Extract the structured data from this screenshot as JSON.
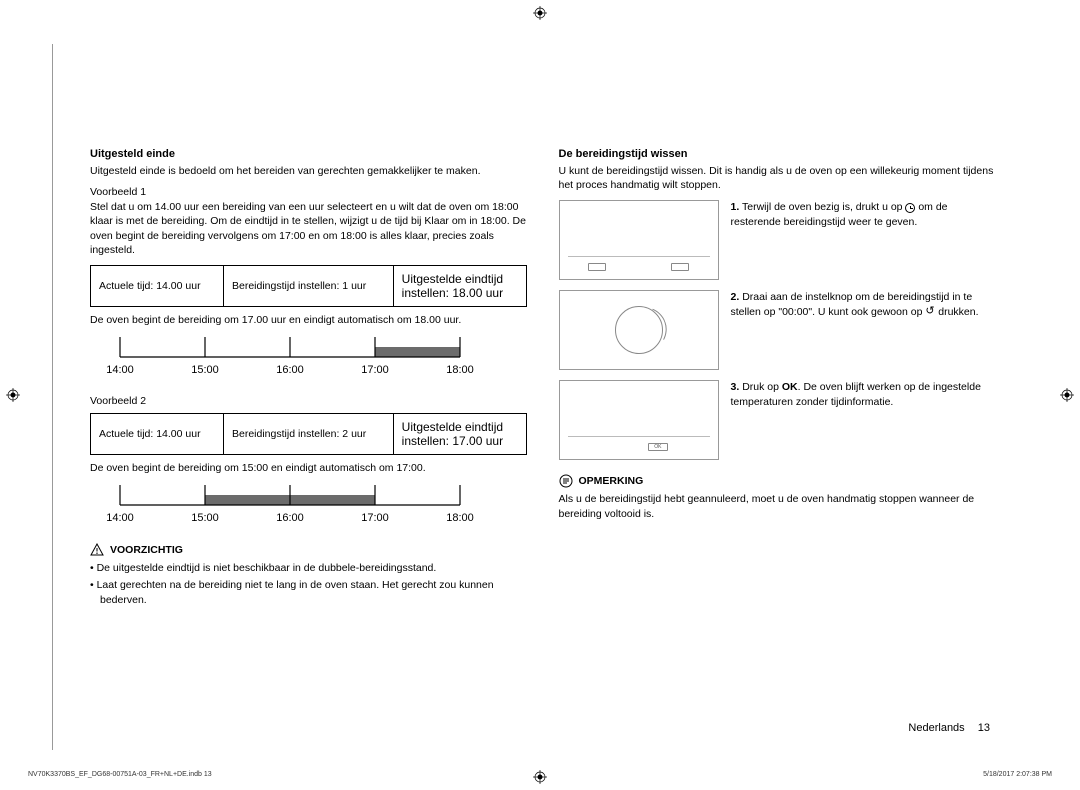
{
  "left": {
    "h1": "Uitgesteld einde",
    "intro": "Uitgesteld einde is bedoeld om het bereiden van gerechten gemakkelijker te maken.",
    "ex1_label": "Voorbeeld 1",
    "ex1_text": "Stel dat u om 14.00 uur een bereiding van een uur selecteert en u wilt dat de oven om 18:00 klaar is met de bereiding. Om de eindtijd in te stellen, wijzigt u de tijd bij Klaar om in 18:00. De oven begint de bereiding vervolgens om 17:00 en om 18:00 is alles klaar, precies zoals ingesteld.",
    "ex1_table": {
      "c1": "Actuele tijd: 14.00 uur",
      "c2": "Bereidingstijd instellen: 1 uur",
      "c3a": "Uitgestelde eindtijd",
      "c3b": "instellen: 18.00 uur"
    },
    "ex1_caption": "De oven begint de bereiding om 17.00 uur en eindigt automatisch om 18.00 uur.",
    "timeline1": {
      "labels": [
        "14:00",
        "15:00",
        "16:00",
        "17:00",
        "18:00"
      ],
      "fill_start_index": 3,
      "fill_end_index": 4
    },
    "ex2_label": "Voorbeeld 2",
    "ex2_table": {
      "c1": "Actuele tijd: 14.00 uur",
      "c2": "Bereidingstijd instellen: 2 uur",
      "c3a": "Uitgestelde eindtijd",
      "c3b": "instellen: 17.00 uur"
    },
    "ex2_caption": "De oven begint de bereiding om 15:00 en eindigt automatisch om 17:00.",
    "timeline2": {
      "labels": [
        "14:00",
        "15:00",
        "16:00",
        "17:00",
        "18:00"
      ],
      "fill_start_index": 1,
      "fill_end_index": 3
    },
    "warn_label": "VOORZICHTIG",
    "warn_b1": "• De uitgestelde eindtijd is niet beschikbaar in de dubbele-bereidingsstand.",
    "warn_b2": "• Laat gerechten na de bereiding niet te lang in de oven staan. Het gerecht zou kunnen bederven."
  },
  "right": {
    "h1": "De bereidingstijd wissen",
    "intro": "U kunt de bereidingstijd wissen. Dit is handig als u de oven op een willekeurig moment tijdens het proces handmatig wilt stoppen.",
    "steps": [
      {
        "n": "1.",
        "t1": "Terwijl de oven bezig is, drukt u op ",
        "t2": " om de resterende bereidingstijd weer te geven.",
        "icon": "clock"
      },
      {
        "n": "2.",
        "t": "Draai aan de instelknop om de bereidingstijd in te stellen op \"00:00\". U kunt ook gewoon op ",
        "t2": " drukken.",
        "icon": "back"
      },
      {
        "n": "3.",
        "t_pre": "Druk op ",
        "bold": "OK",
        "t_post": ". De oven blijft werken op de ingestelde temperaturen zonder tijdinformatie."
      }
    ],
    "note_label": "OPMERKING",
    "note_text": "Als u de bereidingstijd hebt geannuleerd, moet u de oven handmatig stoppen wanneer de bereiding voltooid is."
  },
  "footer": {
    "lang": "Nederlands",
    "page": "13"
  },
  "print": {
    "file": "NV70K3370BS_EF_DG68-00751A-03_FR+NL+DE.indb   13",
    "time": "5/18/2017   2:07:38 PM"
  },
  "colors": {
    "timeline_fill": "#6b6b6b",
    "timeline_stroke": "#000",
    "border_gray": "#999"
  }
}
